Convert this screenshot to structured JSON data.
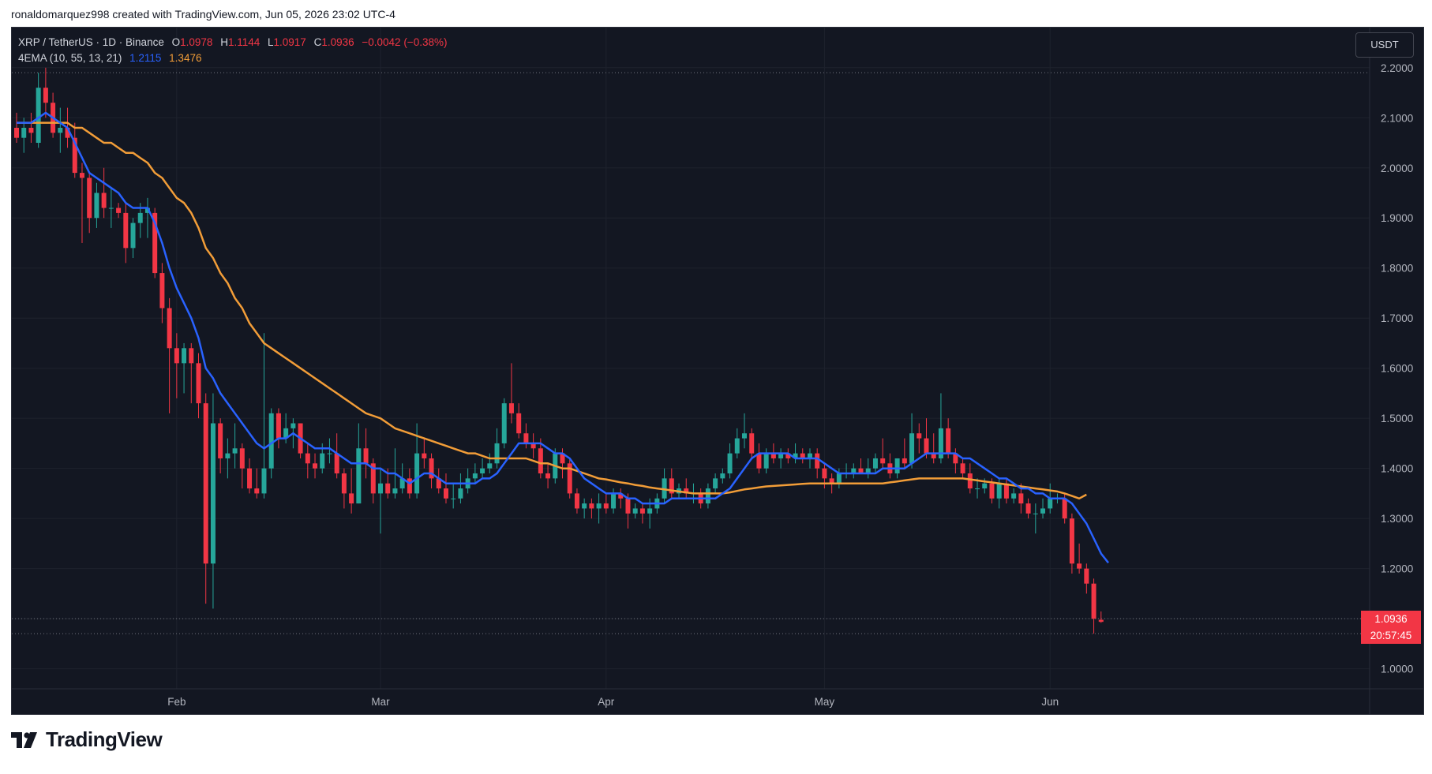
{
  "header": {
    "text": "ronaldomarquez998 created with TradingView.com, Jun 05, 2026 23:02 UTC-4"
  },
  "legend": {
    "symbol": "XRP / TetherUS · 1D · Binance",
    "o_label": "O",
    "o": "1.0978",
    "h_label": "H",
    "h": "1.1144",
    "l_label": "L",
    "l": "1.0917",
    "c_label": "C",
    "c": "1.0936",
    "change": "−0.0042 (−0.38%)",
    "indicator": "4EMA (10, 55, 13, 21)",
    "ema_fast": "1.2115",
    "ema_slow": "1.3476"
  },
  "currency_button": "USDT",
  "last_price": {
    "value": "1.0936",
    "countdown": "20:57:45"
  },
  "logo": {
    "text": "TradingView"
  },
  "colors": {
    "up": "#26a69a",
    "down": "#f23645",
    "ema_fast": "#2962ff",
    "ema_slow": "#f29d38"
  },
  "chart_data": {
    "type": "candlestick",
    "ylim": [
      0.96,
      2.28
    ],
    "y_ticks": [
      "2.2000",
      "2.1000",
      "2.0000",
      "1.9000",
      "1.8000",
      "1.7000",
      "1.6000",
      "1.5000",
      "1.4000",
      "1.3000",
      "1.2000",
      "1.1000",
      "1.0000"
    ],
    "x_ticks": [
      {
        "label": "Feb",
        "index": 22
      },
      {
        "label": "Mar",
        "index": 50
      },
      {
        "label": "Apr",
        "index": 81
      },
      {
        "label": "May",
        "index": 111
      },
      {
        "label": "Jun",
        "index": 142
      }
    ],
    "dotted_levels": [
      2.19,
      1.1,
      1.07
    ],
    "candles": [
      {
        "o": 2.08,
        "h": 2.11,
        "l": 2.05,
        "c": 2.06
      },
      {
        "o": 2.06,
        "h": 2.1,
        "l": 2.03,
        "c": 2.08
      },
      {
        "o": 2.08,
        "h": 2.11,
        "l": 2.05,
        "c": 2.07
      },
      {
        "o": 2.05,
        "h": 2.19,
        "l": 2.04,
        "c": 2.16
      },
      {
        "o": 2.16,
        "h": 2.2,
        "l": 2.1,
        "c": 2.13
      },
      {
        "o": 2.13,
        "h": 2.15,
        "l": 2.06,
        "c": 2.07
      },
      {
        "o": 2.07,
        "h": 2.12,
        "l": 2.03,
        "c": 2.08
      },
      {
        "o": 2.08,
        "h": 2.12,
        "l": 2.04,
        "c": 2.06
      },
      {
        "o": 2.06,
        "h": 2.09,
        "l": 1.98,
        "c": 1.99
      },
      {
        "o": 1.99,
        "h": 2.01,
        "l": 1.85,
        "c": 1.98
      },
      {
        "o": 1.98,
        "h": 1.99,
        "l": 1.87,
        "c": 1.9
      },
      {
        "o": 1.9,
        "h": 1.97,
        "l": 1.88,
        "c": 1.95
      },
      {
        "o": 1.95,
        "h": 2.0,
        "l": 1.9,
        "c": 1.92
      },
      {
        "o": 1.92,
        "h": 1.96,
        "l": 1.88,
        "c": 1.92
      },
      {
        "o": 1.92,
        "h": 1.93,
        "l": 1.9,
        "c": 1.91
      },
      {
        "o": 1.91,
        "h": 1.93,
        "l": 1.81,
        "c": 1.84
      },
      {
        "o": 1.84,
        "h": 1.9,
        "l": 1.82,
        "c": 1.89
      },
      {
        "o": 1.89,
        "h": 1.93,
        "l": 1.86,
        "c": 1.91
      },
      {
        "o": 1.91,
        "h": 1.94,
        "l": 1.86,
        "c": 1.92
      },
      {
        "o": 1.91,
        "h": 1.92,
        "l": 1.78,
        "c": 1.79
      },
      {
        "o": 1.79,
        "h": 1.81,
        "l": 1.69,
        "c": 1.72
      },
      {
        "o": 1.72,
        "h": 1.74,
        "l": 1.51,
        "c": 1.64
      },
      {
        "o": 1.64,
        "h": 1.67,
        "l": 1.54,
        "c": 1.61
      },
      {
        "o": 1.61,
        "h": 1.65,
        "l": 1.55,
        "c": 1.64
      },
      {
        "o": 1.64,
        "h": 1.65,
        "l": 1.53,
        "c": 1.61
      },
      {
        "o": 1.61,
        "h": 1.63,
        "l": 1.5,
        "c": 1.53
      },
      {
        "o": 1.53,
        "h": 1.55,
        "l": 1.13,
        "c": 1.21
      },
      {
        "o": 1.21,
        "h": 1.55,
        "l": 1.12,
        "c": 1.49
      },
      {
        "o": 1.49,
        "h": 1.5,
        "l": 1.39,
        "c": 1.42
      },
      {
        "o": 1.42,
        "h": 1.46,
        "l": 1.38,
        "c": 1.43
      },
      {
        "o": 1.43,
        "h": 1.49,
        "l": 1.4,
        "c": 1.44
      },
      {
        "o": 1.44,
        "h": 1.45,
        "l": 1.36,
        "c": 1.4
      },
      {
        "o": 1.4,
        "h": 1.42,
        "l": 1.35,
        "c": 1.36
      },
      {
        "o": 1.36,
        "h": 1.4,
        "l": 1.34,
        "c": 1.35
      },
      {
        "o": 1.35,
        "h": 1.67,
        "l": 1.34,
        "c": 1.4
      },
      {
        "o": 1.4,
        "h": 1.52,
        "l": 1.38,
        "c": 1.51
      },
      {
        "o": 1.51,
        "h": 1.52,
        "l": 1.44,
        "c": 1.46
      },
      {
        "o": 1.46,
        "h": 1.51,
        "l": 1.45,
        "c": 1.48
      },
      {
        "o": 1.48,
        "h": 1.5,
        "l": 1.44,
        "c": 1.49
      },
      {
        "o": 1.49,
        "h": 1.49,
        "l": 1.42,
        "c": 1.43
      },
      {
        "o": 1.43,
        "h": 1.45,
        "l": 1.38,
        "c": 1.41
      },
      {
        "o": 1.41,
        "h": 1.43,
        "l": 1.38,
        "c": 1.4
      },
      {
        "o": 1.4,
        "h": 1.45,
        "l": 1.39,
        "c": 1.43
      },
      {
        "o": 1.43,
        "h": 1.46,
        "l": 1.41,
        "c": 1.43
      },
      {
        "o": 1.43,
        "h": 1.47,
        "l": 1.38,
        "c": 1.39
      },
      {
        "o": 1.39,
        "h": 1.4,
        "l": 1.32,
        "c": 1.35
      },
      {
        "o": 1.35,
        "h": 1.4,
        "l": 1.31,
        "c": 1.33
      },
      {
        "o": 1.33,
        "h": 1.49,
        "l": 1.33,
        "c": 1.44
      },
      {
        "o": 1.44,
        "h": 1.48,
        "l": 1.38,
        "c": 1.41
      },
      {
        "o": 1.41,
        "h": 1.42,
        "l": 1.33,
        "c": 1.35
      },
      {
        "o": 1.35,
        "h": 1.4,
        "l": 1.27,
        "c": 1.37
      },
      {
        "o": 1.37,
        "h": 1.4,
        "l": 1.34,
        "c": 1.35
      },
      {
        "o": 1.35,
        "h": 1.44,
        "l": 1.34,
        "c": 1.36
      },
      {
        "o": 1.36,
        "h": 1.41,
        "l": 1.35,
        "c": 1.38
      },
      {
        "o": 1.38,
        "h": 1.4,
        "l": 1.34,
        "c": 1.35
      },
      {
        "o": 1.35,
        "h": 1.49,
        "l": 1.34,
        "c": 1.43
      },
      {
        "o": 1.43,
        "h": 1.46,
        "l": 1.4,
        "c": 1.42
      },
      {
        "o": 1.42,
        "h": 1.43,
        "l": 1.36,
        "c": 1.38
      },
      {
        "o": 1.38,
        "h": 1.4,
        "l": 1.35,
        "c": 1.36
      },
      {
        "o": 1.36,
        "h": 1.39,
        "l": 1.33,
        "c": 1.34
      },
      {
        "o": 1.34,
        "h": 1.37,
        "l": 1.32,
        "c": 1.34
      },
      {
        "o": 1.34,
        "h": 1.39,
        "l": 1.33,
        "c": 1.36
      },
      {
        "o": 1.36,
        "h": 1.4,
        "l": 1.35,
        "c": 1.38
      },
      {
        "o": 1.38,
        "h": 1.41,
        "l": 1.37,
        "c": 1.39
      },
      {
        "o": 1.39,
        "h": 1.42,
        "l": 1.38,
        "c": 1.4
      },
      {
        "o": 1.4,
        "h": 1.43,
        "l": 1.39,
        "c": 1.41
      },
      {
        "o": 1.41,
        "h": 1.48,
        "l": 1.4,
        "c": 1.45
      },
      {
        "o": 1.45,
        "h": 1.54,
        "l": 1.44,
        "c": 1.53
      },
      {
        "o": 1.53,
        "h": 1.61,
        "l": 1.49,
        "c": 1.51
      },
      {
        "o": 1.51,
        "h": 1.53,
        "l": 1.46,
        "c": 1.47
      },
      {
        "o": 1.47,
        "h": 1.49,
        "l": 1.44,
        "c": 1.45
      },
      {
        "o": 1.45,
        "h": 1.47,
        "l": 1.42,
        "c": 1.44
      },
      {
        "o": 1.44,
        "h": 1.46,
        "l": 1.38,
        "c": 1.39
      },
      {
        "o": 1.39,
        "h": 1.41,
        "l": 1.36,
        "c": 1.38
      },
      {
        "o": 1.38,
        "h": 1.44,
        "l": 1.37,
        "c": 1.43
      },
      {
        "o": 1.43,
        "h": 1.44,
        "l": 1.38,
        "c": 1.41
      },
      {
        "o": 1.41,
        "h": 1.42,
        "l": 1.34,
        "c": 1.35
      },
      {
        "o": 1.35,
        "h": 1.36,
        "l": 1.31,
        "c": 1.32
      },
      {
        "o": 1.32,
        "h": 1.34,
        "l": 1.3,
        "c": 1.33
      },
      {
        "o": 1.33,
        "h": 1.34,
        "l": 1.3,
        "c": 1.32
      },
      {
        "o": 1.32,
        "h": 1.35,
        "l": 1.29,
        "c": 1.33
      },
      {
        "o": 1.33,
        "h": 1.35,
        "l": 1.31,
        "c": 1.32
      },
      {
        "o": 1.32,
        "h": 1.36,
        "l": 1.31,
        "c": 1.35
      },
      {
        "o": 1.35,
        "h": 1.36,
        "l": 1.32,
        "c": 1.34
      },
      {
        "o": 1.34,
        "h": 1.35,
        "l": 1.28,
        "c": 1.31
      },
      {
        "o": 1.31,
        "h": 1.33,
        "l": 1.3,
        "c": 1.32
      },
      {
        "o": 1.32,
        "h": 1.33,
        "l": 1.29,
        "c": 1.31
      },
      {
        "o": 1.31,
        "h": 1.34,
        "l": 1.28,
        "c": 1.32
      },
      {
        "o": 1.32,
        "h": 1.35,
        "l": 1.31,
        "c": 1.34
      },
      {
        "o": 1.34,
        "h": 1.4,
        "l": 1.33,
        "c": 1.38
      },
      {
        "o": 1.38,
        "h": 1.4,
        "l": 1.34,
        "c": 1.35
      },
      {
        "o": 1.35,
        "h": 1.37,
        "l": 1.34,
        "c": 1.36
      },
      {
        "o": 1.36,
        "h": 1.38,
        "l": 1.34,
        "c": 1.35
      },
      {
        "o": 1.35,
        "h": 1.37,
        "l": 1.33,
        "c": 1.35
      },
      {
        "o": 1.35,
        "h": 1.36,
        "l": 1.32,
        "c": 1.33
      },
      {
        "o": 1.33,
        "h": 1.37,
        "l": 1.32,
        "c": 1.36
      },
      {
        "o": 1.36,
        "h": 1.39,
        "l": 1.35,
        "c": 1.38
      },
      {
        "o": 1.38,
        "h": 1.4,
        "l": 1.37,
        "c": 1.39
      },
      {
        "o": 1.39,
        "h": 1.45,
        "l": 1.38,
        "c": 1.43
      },
      {
        "o": 1.43,
        "h": 1.48,
        "l": 1.42,
        "c": 1.46
      },
      {
        "o": 1.46,
        "h": 1.51,
        "l": 1.44,
        "c": 1.47
      },
      {
        "o": 1.47,
        "h": 1.48,
        "l": 1.42,
        "c": 1.43
      },
      {
        "o": 1.43,
        "h": 1.45,
        "l": 1.39,
        "c": 1.4
      },
      {
        "o": 1.4,
        "h": 1.44,
        "l": 1.39,
        "c": 1.43
      },
      {
        "o": 1.43,
        "h": 1.45,
        "l": 1.41,
        "c": 1.42
      },
      {
        "o": 1.42,
        "h": 1.44,
        "l": 1.4,
        "c": 1.43
      },
      {
        "o": 1.43,
        "h": 1.44,
        "l": 1.41,
        "c": 1.42
      },
      {
        "o": 1.42,
        "h": 1.45,
        "l": 1.41,
        "c": 1.43
      },
      {
        "o": 1.43,
        "h": 1.44,
        "l": 1.41,
        "c": 1.42
      },
      {
        "o": 1.42,
        "h": 1.44,
        "l": 1.4,
        "c": 1.43
      },
      {
        "o": 1.43,
        "h": 1.44,
        "l": 1.38,
        "c": 1.4
      },
      {
        "o": 1.4,
        "h": 1.41,
        "l": 1.36,
        "c": 1.38
      },
      {
        "o": 1.38,
        "h": 1.39,
        "l": 1.35,
        "c": 1.37
      },
      {
        "o": 1.37,
        "h": 1.4,
        "l": 1.36,
        "c": 1.39
      },
      {
        "o": 1.39,
        "h": 1.41,
        "l": 1.38,
        "c": 1.39
      },
      {
        "o": 1.39,
        "h": 1.41,
        "l": 1.38,
        "c": 1.4
      },
      {
        "o": 1.4,
        "h": 1.42,
        "l": 1.39,
        "c": 1.39
      },
      {
        "o": 1.39,
        "h": 1.42,
        "l": 1.38,
        "c": 1.4
      },
      {
        "o": 1.4,
        "h": 1.43,
        "l": 1.39,
        "c": 1.42
      },
      {
        "o": 1.42,
        "h": 1.46,
        "l": 1.4,
        "c": 1.41
      },
      {
        "o": 1.41,
        "h": 1.43,
        "l": 1.38,
        "c": 1.39
      },
      {
        "o": 1.39,
        "h": 1.42,
        "l": 1.38,
        "c": 1.42
      },
      {
        "o": 1.42,
        "h": 1.46,
        "l": 1.4,
        "c": 1.41
      },
      {
        "o": 1.41,
        "h": 1.51,
        "l": 1.4,
        "c": 1.47
      },
      {
        "o": 1.47,
        "h": 1.49,
        "l": 1.43,
        "c": 1.46
      },
      {
        "o": 1.46,
        "h": 1.5,
        "l": 1.42,
        "c": 1.43
      },
      {
        "o": 1.43,
        "h": 1.47,
        "l": 1.41,
        "c": 1.42
      },
      {
        "o": 1.42,
        "h": 1.55,
        "l": 1.41,
        "c": 1.48
      },
      {
        "o": 1.48,
        "h": 1.5,
        "l": 1.42,
        "c": 1.43
      },
      {
        "o": 1.43,
        "h": 1.44,
        "l": 1.39,
        "c": 1.41
      },
      {
        "o": 1.41,
        "h": 1.42,
        "l": 1.38,
        "c": 1.39
      },
      {
        "o": 1.39,
        "h": 1.41,
        "l": 1.35,
        "c": 1.36
      },
      {
        "o": 1.36,
        "h": 1.38,
        "l": 1.34,
        "c": 1.36
      },
      {
        "o": 1.36,
        "h": 1.38,
        "l": 1.35,
        "c": 1.37
      },
      {
        "o": 1.37,
        "h": 1.38,
        "l": 1.33,
        "c": 1.34
      },
      {
        "o": 1.34,
        "h": 1.38,
        "l": 1.32,
        "c": 1.37
      },
      {
        "o": 1.37,
        "h": 1.38,
        "l": 1.33,
        "c": 1.34
      },
      {
        "o": 1.34,
        "h": 1.36,
        "l": 1.33,
        "c": 1.35
      },
      {
        "o": 1.35,
        "h": 1.37,
        "l": 1.31,
        "c": 1.33
      },
      {
        "o": 1.33,
        "h": 1.34,
        "l": 1.3,
        "c": 1.31
      },
      {
        "o": 1.31,
        "h": 1.33,
        "l": 1.27,
        "c": 1.31
      },
      {
        "o": 1.31,
        "h": 1.34,
        "l": 1.3,
        "c": 1.32
      },
      {
        "o": 1.32,
        "h": 1.37,
        "l": 1.31,
        "c": 1.34
      },
      {
        "o": 1.34,
        "h": 1.35,
        "l": 1.33,
        "c": 1.34
      },
      {
        "o": 1.34,
        "h": 1.35,
        "l": 1.29,
        "c": 1.3
      },
      {
        "o": 1.3,
        "h": 1.31,
        "l": 1.19,
        "c": 1.21
      },
      {
        "o": 1.21,
        "h": 1.25,
        "l": 1.19,
        "c": 1.2
      },
      {
        "o": 1.2,
        "h": 1.21,
        "l": 1.15,
        "c": 1.17
      },
      {
        "o": 1.17,
        "h": 1.18,
        "l": 1.07,
        "c": 1.1
      },
      {
        "o": 1.0978,
        "h": 1.1144,
        "l": 1.0917,
        "c": 1.0936
      }
    ],
    "ema_fast": [
      2.09,
      2.09,
      2.09,
      2.1,
      2.11,
      2.1,
      2.09,
      2.08,
      2.05,
      2.02,
      1.99,
      1.98,
      1.97,
      1.96,
      1.95,
      1.93,
      1.92,
      1.92,
      1.92,
      1.89,
      1.85,
      1.8,
      1.76,
      1.73,
      1.7,
      1.66,
      1.6,
      1.58,
      1.55,
      1.53,
      1.51,
      1.49,
      1.47,
      1.45,
      1.44,
      1.45,
      1.46,
      1.46,
      1.47,
      1.46,
      1.45,
      1.44,
      1.44,
      1.44,
      1.43,
      1.42,
      1.41,
      1.41,
      1.41,
      1.4,
      1.4,
      1.39,
      1.39,
      1.38,
      1.37,
      1.38,
      1.39,
      1.39,
      1.38,
      1.37,
      1.37,
      1.37,
      1.37,
      1.37,
      1.38,
      1.38,
      1.39,
      1.41,
      1.43,
      1.45,
      1.45,
      1.45,
      1.45,
      1.44,
      1.43,
      1.43,
      1.42,
      1.4,
      1.38,
      1.37,
      1.36,
      1.35,
      1.35,
      1.35,
      1.34,
      1.34,
      1.33,
      1.33,
      1.33,
      1.33,
      1.34,
      1.34,
      1.34,
      1.34,
      1.34,
      1.34,
      1.34,
      1.35,
      1.36,
      1.38,
      1.4,
      1.42,
      1.43,
      1.43,
      1.43,
      1.43,
      1.43,
      1.42,
      1.42,
      1.42,
      1.42,
      1.41,
      1.4,
      1.39,
      1.39,
      1.39,
      1.39,
      1.39,
      1.39,
      1.4,
      1.4,
      1.4,
      1.4,
      1.41,
      1.42,
      1.43,
      1.43,
      1.43,
      1.43,
      1.43,
      1.42,
      1.42,
      1.41,
      1.4,
      1.39,
      1.38,
      1.38,
      1.37,
      1.36,
      1.36,
      1.35,
      1.35,
      1.34,
      1.34,
      1.34,
      1.33,
      1.31,
      1.29,
      1.26,
      1.23,
      1.2115
    ],
    "ema_slow": [
      2.09,
      2.09,
      2.09,
      2.09,
      2.09,
      2.09,
      2.09,
      2.09,
      2.08,
      2.08,
      2.07,
      2.06,
      2.05,
      2.05,
      2.04,
      2.03,
      2.03,
      2.02,
      2.01,
      1.99,
      1.98,
      1.96,
      1.94,
      1.93,
      1.91,
      1.88,
      1.84,
      1.82,
      1.79,
      1.77,
      1.74,
      1.72,
      1.69,
      1.67,
      1.65,
      1.64,
      1.63,
      1.62,
      1.61,
      1.6,
      1.59,
      1.58,
      1.57,
      1.56,
      1.55,
      1.54,
      1.53,
      1.52,
      1.51,
      1.505,
      1.5,
      1.49,
      1.48,
      1.475,
      1.47,
      1.465,
      1.46,
      1.455,
      1.45,
      1.445,
      1.44,
      1.435,
      1.43,
      1.43,
      1.425,
      1.42,
      1.42,
      1.42,
      1.42,
      1.42,
      1.42,
      1.415,
      1.41,
      1.41,
      1.405,
      1.4,
      1.4,
      1.395,
      1.39,
      1.385,
      1.38,
      1.378,
      1.375,
      1.372,
      1.37,
      1.367,
      1.365,
      1.362,
      1.36,
      1.358,
      1.356,
      1.354,
      1.352,
      1.35,
      1.35,
      1.35,
      1.35,
      1.35,
      1.352,
      1.355,
      1.358,
      1.36,
      1.362,
      1.364,
      1.365,
      1.366,
      1.367,
      1.368,
      1.369,
      1.37,
      1.37,
      1.37,
      1.37,
      1.37,
      1.37,
      1.37,
      1.37,
      1.37,
      1.37,
      1.37,
      1.372,
      1.374,
      1.376,
      1.378,
      1.38,
      1.38,
      1.38,
      1.38,
      1.38,
      1.38,
      1.38,
      1.378,
      1.376,
      1.374,
      1.372,
      1.37,
      1.368,
      1.366,
      1.364,
      1.362,
      1.36,
      1.358,
      1.356,
      1.354,
      1.35,
      1.345,
      1.34,
      1.3476
    ]
  }
}
